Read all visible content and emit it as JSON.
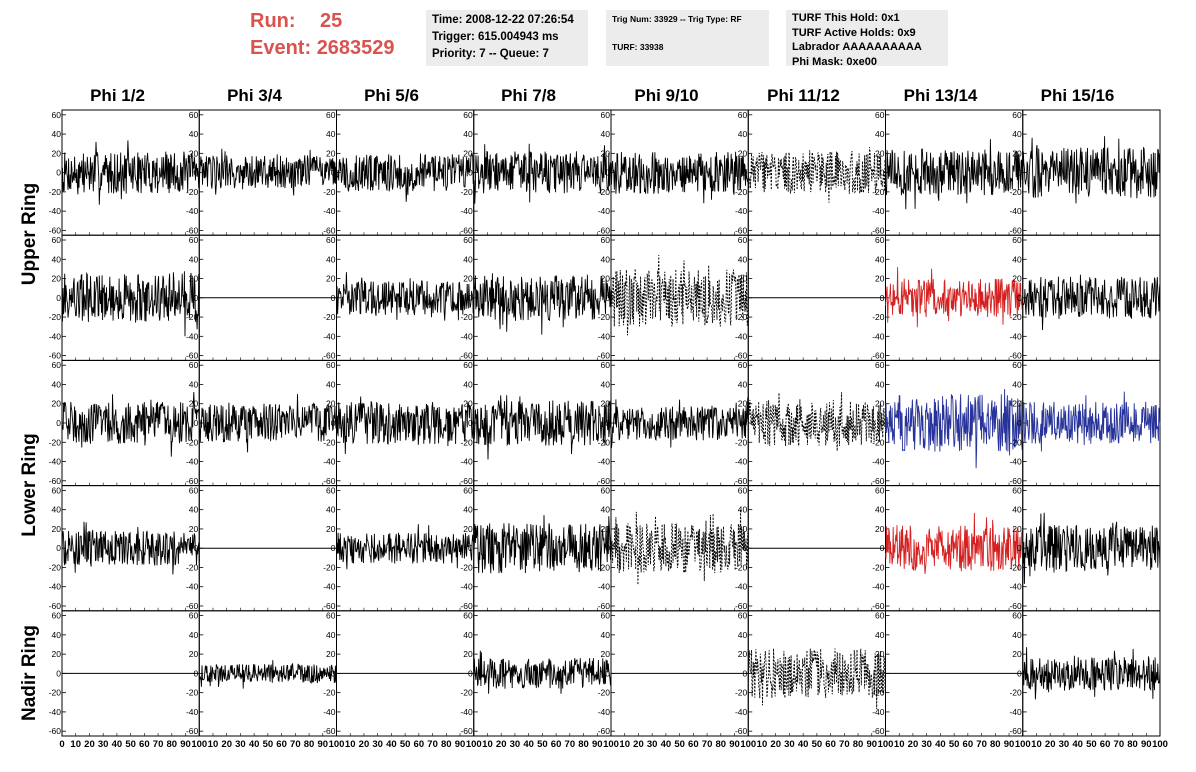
{
  "header": {
    "run_label": "Run:",
    "run_value": "25",
    "event_label": "Event:",
    "event_value": "2683529"
  },
  "info": {
    "time": "Time: 2008-12-22 07:26:54",
    "trigger": "Trigger: 615.004943 ms",
    "priority": "Priority: 7 -- Queue: 7",
    "trig_num": "Trig Num: 33929 -- Trig Type: RF",
    "turf": "TURF: 33938",
    "turf_this_hold": "TURF This Hold: 0x1",
    "turf_active_holds": "TURF Active Holds: 0x9",
    "labrador": "Labrador AAAAAAAAAA",
    "phi_mask": "Phi Mask: 0xe00"
  },
  "columns": [
    "Phi 1/2",
    "Phi 3/4",
    "Phi 5/6",
    "Phi 7/8",
    "Phi 9/10",
    "Phi 11/12",
    "Phi 13/14",
    "Phi 15/16"
  ],
  "row_labels": {
    "upper": "Upper Ring",
    "lower": "Lower Ring",
    "nadir": "Nadir Ring"
  },
  "chart_data": {
    "type": "line",
    "description_of_grid": "5 rows x 8 columns of waveform panels",
    "xlim": [
      0,
      100
    ],
    "ylim": [
      -65,
      65
    ],
    "x_ticks": [
      0,
      10,
      20,
      30,
      40,
      50,
      60,
      70,
      80,
      90,
      100
    ],
    "x_tick_labels_first": [
      "0",
      "10",
      "20",
      "30",
      "40",
      "50",
      "60",
      "70",
      "80",
      "90",
      "100"
    ],
    "x_tick_labels_other": [
      "10",
      "20",
      "30",
      "40",
      "50",
      "60",
      "70",
      "80",
      "90",
      "100"
    ],
    "y_ticks": [
      60,
      40,
      20,
      0,
      -20,
      -40,
      -60
    ],
    "y_tick_labels": [
      "60",
      "40",
      "20",
      "0",
      "-20",
      "-40",
      "-60"
    ],
    "colors": {
      "normal": "#000000",
      "red": "#d42020",
      "blue": "#27339a"
    },
    "panels": [
      [
        {
          "style": "wave",
          "color": "normal",
          "amp": 22
        },
        {
          "style": "wave",
          "color": "normal",
          "amp": 18
        },
        {
          "style": "wave",
          "color": "normal",
          "amp": 20
        },
        {
          "style": "wave",
          "color": "normal",
          "amp": 22
        },
        {
          "style": "wave",
          "color": "normal",
          "amp": 22
        },
        {
          "style": "dashed",
          "color": "normal",
          "amp": 22
        },
        {
          "style": "wave",
          "color": "normal",
          "amp": 24
        },
        {
          "style": "wave",
          "color": "normal",
          "amp": 26
        }
      ],
      [
        {
          "style": "wave",
          "color": "normal",
          "amp": 26
        },
        {
          "style": "flat",
          "color": "normal",
          "amp": 0
        },
        {
          "style": "wave",
          "color": "normal",
          "amp": 18
        },
        {
          "style": "wave",
          "color": "normal",
          "amp": 24
        },
        {
          "style": "dashed",
          "color": "normal",
          "amp": 30
        },
        {
          "style": "flat",
          "color": "normal",
          "amp": 0
        },
        {
          "style": "wave",
          "color": "red",
          "amp": 20
        },
        {
          "style": "wave",
          "color": "normal",
          "amp": 22
        }
      ],
      [
        {
          "style": "wave",
          "color": "normal",
          "amp": 22
        },
        {
          "style": "wave",
          "color": "normal",
          "amp": 20
        },
        {
          "style": "wave",
          "color": "normal",
          "amp": 22
        },
        {
          "style": "wave",
          "color": "normal",
          "amp": 24
        },
        {
          "style": "wave",
          "color": "normal",
          "amp": 18
        },
        {
          "style": "dashed",
          "color": "normal",
          "amp": 24
        },
        {
          "style": "wave",
          "color": "blue",
          "amp": 30
        },
        {
          "style": "wave",
          "color": "blue",
          "amp": 22
        }
      ],
      [
        {
          "style": "wave",
          "color": "normal",
          "amp": 18
        },
        {
          "style": "flat",
          "color": "normal",
          "amp": 0
        },
        {
          "style": "wave",
          "color": "normal",
          "amp": 16
        },
        {
          "style": "wave",
          "color": "normal",
          "amp": 26
        },
        {
          "style": "dashed",
          "color": "normal",
          "amp": 26
        },
        {
          "style": "flat",
          "color": "normal",
          "amp": 0
        },
        {
          "style": "wave",
          "color": "red",
          "amp": 24
        },
        {
          "style": "wave",
          "color": "normal",
          "amp": 24
        }
      ],
      [
        {
          "style": "flat",
          "color": "normal",
          "amp": 0
        },
        {
          "style": "wave",
          "color": "normal",
          "amp": 10
        },
        {
          "style": "flat",
          "color": "normal",
          "amp": 0
        },
        {
          "style": "wave",
          "color": "normal",
          "amp": 16
        },
        {
          "style": "flat",
          "color": "normal",
          "amp": 0
        },
        {
          "style": "dashed",
          "color": "normal",
          "amp": 26
        },
        {
          "style": "flat",
          "color": "normal",
          "amp": 0
        },
        {
          "style": "wave",
          "color": "normal",
          "amp": 18
        }
      ]
    ]
  }
}
